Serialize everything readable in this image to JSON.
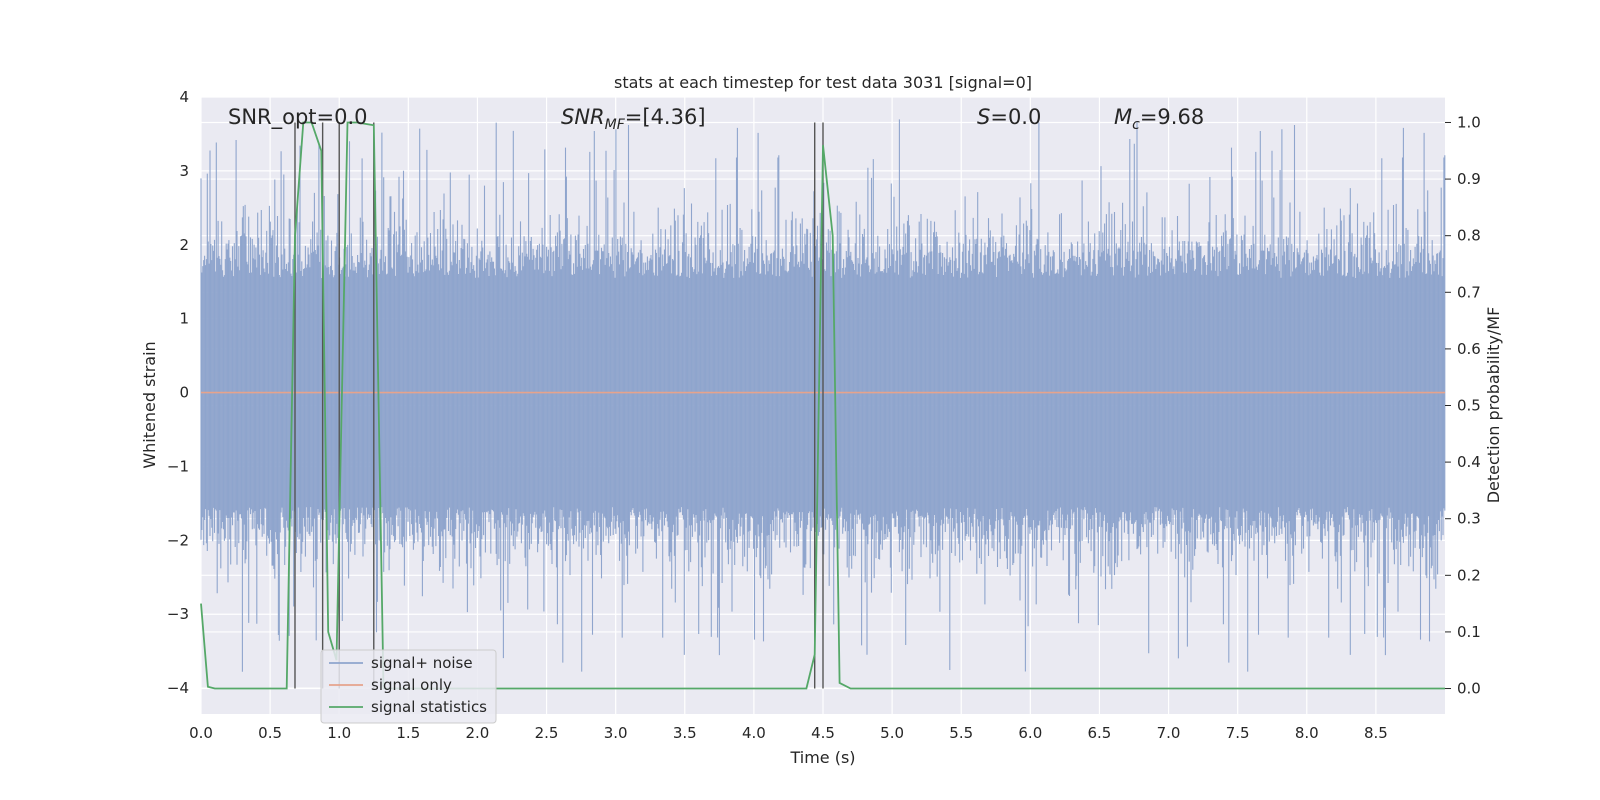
{
  "chart_data": {
    "type": "line",
    "title": "stats at each timestep for test data 3031 [signal=0]",
    "xlabel": "Time (s)",
    "ylabel": "Whitened strain",
    "y2label": "Detection probability/MF",
    "xlim": [
      0.0,
      9.0
    ],
    "ylim": [
      -4.35,
      4.0
    ],
    "y2lim": [
      -0.045,
      1.045
    ],
    "xticks": [
      "0.0",
      "0.5",
      "1.0",
      "1.5",
      "2.0",
      "2.5",
      "3.0",
      "3.5",
      "4.0",
      "4.5",
      "5.0",
      "5.5",
      "6.0",
      "6.5",
      "7.0",
      "7.5",
      "8.0",
      "8.5"
    ],
    "yticks": [
      "4",
      "3",
      "2",
      "1",
      "0",
      "−1",
      "−2",
      "−3",
      "−4"
    ],
    "y2ticks": [
      "1.0",
      "0.9",
      "0.8",
      "0.7",
      "0.6",
      "0.5",
      "0.4",
      "0.3",
      "0.2",
      "0.1",
      "0.0"
    ],
    "grid": true,
    "legend_position": "bottom-left",
    "annotations": {
      "snr_opt": "SNR_opt=0.0",
      "snr_mf_main": "SNR",
      "snr_mf_sub": "MF",
      "snr_mf_value": "=[4.36]",
      "s_main": "S",
      "s_value": "=0.0",
      "mc_main": "M",
      "mc_sub": "c",
      "mc_value": "=9.68"
    },
    "series": [
      {
        "name": "signal+ noise",
        "color": "#8fa5cd",
        "axis": "left",
        "description_values": "whitened noise, approx. +/-2 with peaks to +/-3.8",
        "y_range": [
          -3.9,
          3.8
        ]
      },
      {
        "name": "signal only",
        "color": "#e6a38c",
        "axis": "left",
        "x": [
          0.0,
          9.0
        ],
        "y": [
          0.0,
          0.0
        ]
      },
      {
        "name": "signal statistics",
        "color": "#55a868",
        "axis": "right",
        "x": [
          0.0,
          0.05,
          0.1,
          0.62,
          0.68,
          0.74,
          0.8,
          0.87,
          0.92,
          0.98,
          1.06,
          1.13,
          1.25,
          1.32,
          1.4,
          4.38,
          4.44,
          4.5,
          4.57,
          4.62,
          4.7,
          9.0
        ],
        "y": [
          0.15,
          0.003,
          0.0,
          0.0,
          0.8,
          1.0,
          1.0,
          0.95,
          0.1,
          0.05,
          1.0,
          1.0,
          0.995,
          0.0,
          0.0,
          0.0,
          0.06,
          0.96,
          0.8,
          0.01,
          0.0,
          0.0
        ]
      }
    ],
    "vertical_markers_x": [
      0.68,
      0.88,
      1.0,
      1.25,
      4.44,
      4.5
    ]
  }
}
